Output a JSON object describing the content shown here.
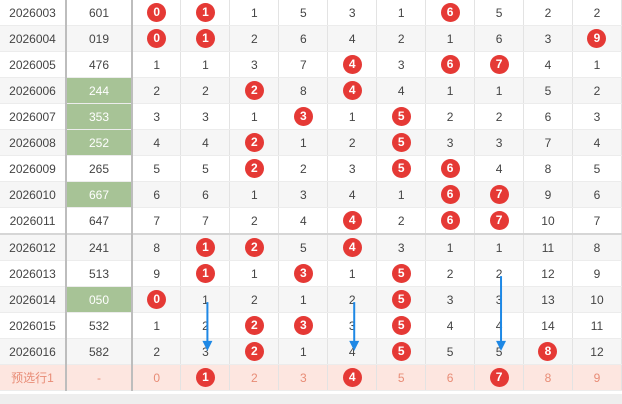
{
  "rows": [
    {
      "period": "2026003",
      "num": "601",
      "highlight": false,
      "cells": [
        {
          "v": "0",
          "ball": true
        },
        {
          "v": "1",
          "ball": true
        },
        {
          "v": "1",
          "ball": false
        },
        {
          "v": "5",
          "ball": false
        },
        {
          "v": "3",
          "ball": false
        },
        {
          "v": "1",
          "ball": false
        },
        {
          "v": "6",
          "ball": true
        },
        {
          "v": "5",
          "ball": false
        },
        {
          "v": "2",
          "ball": false
        },
        {
          "v": "2",
          "ball": false
        }
      ]
    },
    {
      "period": "2026004",
      "num": "019",
      "highlight": false,
      "cells": [
        {
          "v": "0",
          "ball": true
        },
        {
          "v": "1",
          "ball": true
        },
        {
          "v": "2",
          "ball": false
        },
        {
          "v": "6",
          "ball": false
        },
        {
          "v": "4",
          "ball": false
        },
        {
          "v": "2",
          "ball": false
        },
        {
          "v": "1",
          "ball": false
        },
        {
          "v": "6",
          "ball": false
        },
        {
          "v": "3",
          "ball": false
        },
        {
          "v": "9",
          "ball": true
        }
      ]
    },
    {
      "period": "2026005",
      "num": "476",
      "highlight": false,
      "cells": [
        {
          "v": "1",
          "ball": false
        },
        {
          "v": "1",
          "ball": false
        },
        {
          "v": "3",
          "ball": false
        },
        {
          "v": "7",
          "ball": false
        },
        {
          "v": "4",
          "ball": true
        },
        {
          "v": "3",
          "ball": false
        },
        {
          "v": "6",
          "ball": true
        },
        {
          "v": "7",
          "ball": true
        },
        {
          "v": "4",
          "ball": false
        },
        {
          "v": "1",
          "ball": false
        }
      ]
    },
    {
      "period": "2026006",
      "num": "244",
      "highlight": true,
      "cells": [
        {
          "v": "2",
          "ball": false
        },
        {
          "v": "2",
          "ball": false
        },
        {
          "v": "2",
          "ball": true
        },
        {
          "v": "8",
          "ball": false
        },
        {
          "v": "4",
          "ball": true
        },
        {
          "v": "4",
          "ball": false
        },
        {
          "v": "1",
          "ball": false
        },
        {
          "v": "1",
          "ball": false
        },
        {
          "v": "5",
          "ball": false
        },
        {
          "v": "2",
          "ball": false
        }
      ]
    },
    {
      "period": "2026007",
      "num": "353",
      "highlight": true,
      "cells": [
        {
          "v": "3",
          "ball": false
        },
        {
          "v": "3",
          "ball": false
        },
        {
          "v": "1",
          "ball": false
        },
        {
          "v": "3",
          "ball": true
        },
        {
          "v": "1",
          "ball": false
        },
        {
          "v": "5",
          "ball": true
        },
        {
          "v": "2",
          "ball": false
        },
        {
          "v": "2",
          "ball": false
        },
        {
          "v": "6",
          "ball": false
        },
        {
          "v": "3",
          "ball": false
        }
      ]
    },
    {
      "period": "2026008",
      "num": "252",
      "highlight": true,
      "cells": [
        {
          "v": "4",
          "ball": false
        },
        {
          "v": "4",
          "ball": false
        },
        {
          "v": "2",
          "ball": true
        },
        {
          "v": "1",
          "ball": false
        },
        {
          "v": "2",
          "ball": false
        },
        {
          "v": "5",
          "ball": true
        },
        {
          "v": "3",
          "ball": false
        },
        {
          "v": "3",
          "ball": false
        },
        {
          "v": "7",
          "ball": false
        },
        {
          "v": "4",
          "ball": false
        }
      ]
    },
    {
      "period": "2026009",
      "num": "265",
      "highlight": false,
      "cells": [
        {
          "v": "5",
          "ball": false
        },
        {
          "v": "5",
          "ball": false
        },
        {
          "v": "2",
          "ball": true
        },
        {
          "v": "2",
          "ball": false
        },
        {
          "v": "3",
          "ball": false
        },
        {
          "v": "5",
          "ball": true
        },
        {
          "v": "6",
          "ball": true
        },
        {
          "v": "4",
          "ball": false
        },
        {
          "v": "8",
          "ball": false
        },
        {
          "v": "5",
          "ball": false
        }
      ]
    },
    {
      "period": "2026010",
      "num": "667",
      "highlight": true,
      "cells": [
        {
          "v": "6",
          "ball": false
        },
        {
          "v": "6",
          "ball": false
        },
        {
          "v": "1",
          "ball": false
        },
        {
          "v": "3",
          "ball": false
        },
        {
          "v": "4",
          "ball": false
        },
        {
          "v": "1",
          "ball": false
        },
        {
          "v": "6",
          "ball": true
        },
        {
          "v": "7",
          "ball": true
        },
        {
          "v": "9",
          "ball": false
        },
        {
          "v": "6",
          "ball": false
        }
      ]
    },
    {
      "period": "2026011",
      "num": "647",
      "highlight": false,
      "cells": [
        {
          "v": "7",
          "ball": false
        },
        {
          "v": "7",
          "ball": false
        },
        {
          "v": "2",
          "ball": false
        },
        {
          "v": "4",
          "ball": false
        },
        {
          "v": "4",
          "ball": true
        },
        {
          "v": "2",
          "ball": false
        },
        {
          "v": "6",
          "ball": true
        },
        {
          "v": "7",
          "ball": true
        },
        {
          "v": "10",
          "ball": false
        },
        {
          "v": "7",
          "ball": false
        }
      ]
    },
    {
      "period": "2026012",
      "num": "241",
      "highlight": false,
      "sep": true,
      "cells": [
        {
          "v": "8",
          "ball": false
        },
        {
          "v": "1",
          "ball": true
        },
        {
          "v": "2",
          "ball": true
        },
        {
          "v": "5",
          "ball": false
        },
        {
          "v": "4",
          "ball": true
        },
        {
          "v": "3",
          "ball": false
        },
        {
          "v": "1",
          "ball": false
        },
        {
          "v": "1",
          "ball": false
        },
        {
          "v": "11",
          "ball": false
        },
        {
          "v": "8",
          "ball": false
        }
      ]
    },
    {
      "period": "2026013",
      "num": "513",
      "highlight": false,
      "cells": [
        {
          "v": "9",
          "ball": false
        },
        {
          "v": "1",
          "ball": true
        },
        {
          "v": "1",
          "ball": false
        },
        {
          "v": "3",
          "ball": true
        },
        {
          "v": "1",
          "ball": false
        },
        {
          "v": "5",
          "ball": true
        },
        {
          "v": "2",
          "ball": false
        },
        {
          "v": "2",
          "ball": false
        },
        {
          "v": "12",
          "ball": false
        },
        {
          "v": "9",
          "ball": false
        }
      ]
    },
    {
      "period": "2026014",
      "num": "050",
      "highlight": true,
      "cells": [
        {
          "v": "0",
          "ball": true
        },
        {
          "v": "1",
          "ball": false
        },
        {
          "v": "2",
          "ball": false
        },
        {
          "v": "1",
          "ball": false
        },
        {
          "v": "2",
          "ball": false
        },
        {
          "v": "5",
          "ball": true
        },
        {
          "v": "3",
          "ball": false
        },
        {
          "v": "3",
          "ball": false
        },
        {
          "v": "13",
          "ball": false
        },
        {
          "v": "10",
          "ball": false
        }
      ]
    },
    {
      "period": "2026015",
      "num": "532",
      "highlight": false,
      "cells": [
        {
          "v": "1",
          "ball": false
        },
        {
          "v": "2",
          "ball": false
        },
        {
          "v": "2",
          "ball": true
        },
        {
          "v": "3",
          "ball": true
        },
        {
          "v": "3",
          "ball": false
        },
        {
          "v": "5",
          "ball": true
        },
        {
          "v": "4",
          "ball": false
        },
        {
          "v": "4",
          "ball": false
        },
        {
          "v": "14",
          "ball": false
        },
        {
          "v": "11",
          "ball": false
        }
      ]
    },
    {
      "period": "2026016",
      "num": "582",
      "highlight": false,
      "cells": [
        {
          "v": "2",
          "ball": false
        },
        {
          "v": "3",
          "ball": false
        },
        {
          "v": "2",
          "ball": true
        },
        {
          "v": "1",
          "ball": false
        },
        {
          "v": "4",
          "ball": false
        },
        {
          "v": "5",
          "ball": true
        },
        {
          "v": "5",
          "ball": false
        },
        {
          "v": "5",
          "ball": false
        },
        {
          "v": "8",
          "ball": true
        },
        {
          "v": "12",
          "ball": false
        }
      ]
    }
  ],
  "prediction": {
    "label": "预选行1",
    "num": "-",
    "cells": [
      {
        "v": "0",
        "ball": false
      },
      {
        "v": "1",
        "ball": true
      },
      {
        "v": "2",
        "ball": false
      },
      {
        "v": "3",
        "ball": false
      },
      {
        "v": "4",
        "ball": true
      },
      {
        "v": "5",
        "ball": false
      },
      {
        "v": "6",
        "ball": false
      },
      {
        "v": "7",
        "ball": true
      },
      {
        "v": "8",
        "ball": false
      },
      {
        "v": "9",
        "ball": false
      }
    ]
  },
  "colors": {
    "ball": "#e53935",
    "highlight": "#a7c396",
    "arrow": "#1e88e5",
    "prediction_bg": "#fde6e0"
  },
  "annotations": {
    "arrow_icon": "down-arrow-icon",
    "arrow_columns": [
      1,
      4,
      7
    ]
  }
}
